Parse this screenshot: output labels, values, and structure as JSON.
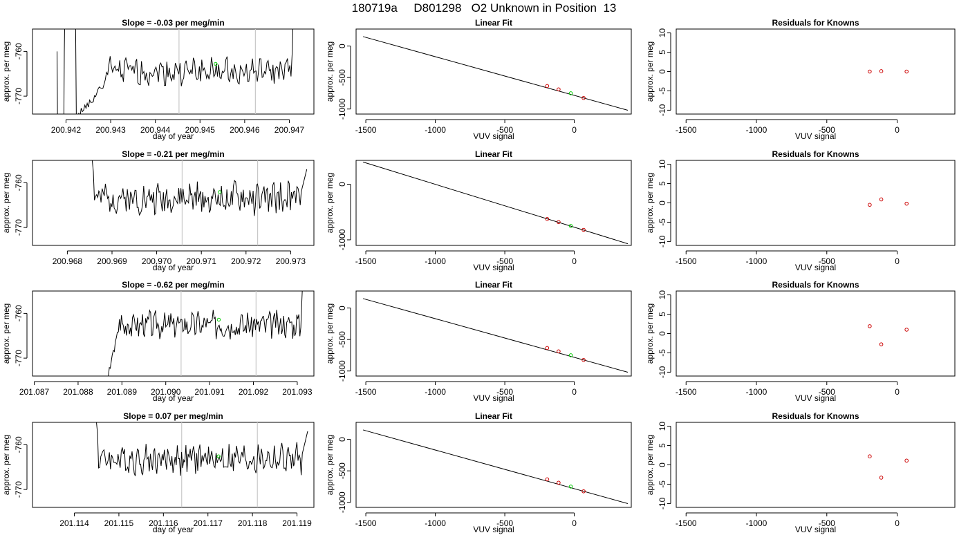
{
  "page": {
    "title": "180719a     D801298   O2 Unknown in Position  13"
  },
  "common": {
    "slope_prefix": "Slope = ",
    "slope_suffix": " per meg/min",
    "fit_title": "Linear Fit",
    "resid_title": "Residuals for Knowns",
    "x_label_time": "day of year",
    "x_label_vuv": "VUV signal",
    "y_label": "approx. per meg"
  },
  "colors": {
    "trace": "#000000",
    "marker_line": "#c8c8c8",
    "unknown_point": "#00cc00",
    "known_point": "#cc0000",
    "axis": "#000000"
  },
  "chart_data": [
    {
      "type": "line",
      "title": "Slope =  -0.03  per meg/min",
      "slope": -0.03,
      "xlabel": "day of year",
      "ylabel": "approx. per meg",
      "xlim": [
        200.94125,
        200.94755
      ],
      "ylim": [
        -774,
        -755
      ],
      "xticks": [
        200.942,
        200.943,
        200.944,
        200.945,
        200.946,
        200.947
      ],
      "xtick_labels": [
        "200.942",
        "200.943",
        "200.944",
        "200.945",
        "200.946",
        "200.947"
      ],
      "yticks": [
        -760,
        -770
      ],
      "ytick_labels": [
        "-760",
        "-770"
      ],
      "markers": [
        200.94453,
        200.94624
      ],
      "trace_start": 200.9418,
      "trace_end": 200.9472,
      "base": -764.5,
      "amp": 2.6,
      "seed": 1,
      "leading": "spike-bowl",
      "green_point": {
        "x": 200.94535,
        "y": -762.8
      }
    },
    {
      "type": "line",
      "title": "Slope =  -0.21  per meg/min",
      "slope": -0.21,
      "xlabel": "day of year",
      "ylabel": "approx. per meg",
      "xlim": [
        200.96722,
        200.97352
      ],
      "ylim": [
        -774,
        -755
      ],
      "xticks": [
        200.968,
        200.969,
        200.97,
        200.971,
        200.972,
        200.973
      ],
      "xtick_labels": [
        "200.968",
        "200.969",
        "200.970",
        "200.971",
        "200.972",
        "200.973"
      ],
      "yticks": [
        -760,
        -770
      ],
      "ytick_labels": [
        "-760",
        "-770"
      ],
      "markers": [
        200.97057,
        200.97226
      ],
      "trace_start": 200.96846,
      "trace_end": 200.97336,
      "base": -763.5,
      "amp": 3.0,
      "seed": 2,
      "leading": "drop",
      "green_point": {
        "x": 200.97141,
        "y": -762.1
      }
    },
    {
      "type": "line",
      "title": "Slope =  -0.62  per meg/min",
      "slope": -0.62,
      "xlabel": "day of year",
      "ylabel": "approx. per meg",
      "xlim": [
        201.08696,
        201.09338
      ],
      "ylim": [
        -774,
        -755
      ],
      "xticks": [
        201.087,
        201.088,
        201.089,
        201.09,
        201.091,
        201.092,
        201.093
      ],
      "xtick_labels": [
        "201.087",
        "201.088",
        "201.089",
        "201.090",
        "201.091",
        "201.092",
        "201.093"
      ],
      "yticks": [
        -760,
        -770
      ],
      "ytick_labels": [
        "-760",
        "-770"
      ],
      "markers": [
        201.09035,
        201.09206
      ],
      "trace_start": 201.08862,
      "trace_end": 201.09322,
      "base": -762.5,
      "amp": 2.6,
      "seed": 3,
      "leading": "rise",
      "green_point": {
        "x": 201.09121,
        "y": -761.4
      }
    },
    {
      "type": "line",
      "title": "Slope =  0.07  per meg/min",
      "slope": 0.07,
      "xlabel": "day of year",
      "ylabel": "approx. per meg",
      "xlim": [
        201.11306,
        201.11938
      ],
      "ylim": [
        -774,
        -755
      ],
      "xticks": [
        201.114,
        201.115,
        201.116,
        201.117,
        201.118,
        201.119
      ],
      "xtick_labels": [
        "201.114",
        "201.115",
        "201.116",
        "201.117",
        "201.118",
        "201.119"
      ],
      "yticks": [
        -760,
        -770
      ],
      "ytick_labels": [
        "-760",
        "-770"
      ],
      "markers": [
        201.11641,
        201.11811
      ],
      "trace_start": 201.1144,
      "trace_end": 201.11924,
      "base": -763.2,
      "amp": 2.9,
      "seed": 4,
      "leading": "drop",
      "green_point": {
        "x": 201.11724,
        "y": -762.6
      }
    },
    {
      "type": "scatter",
      "title": "Linear Fit",
      "xlabel": "VUV signal",
      "ylabel": "approx. per meg",
      "xlim": [
        -1570,
        410
      ],
      "ylim": [
        -1080,
        270
      ],
      "xticks": [
        -1500,
        -1000,
        -500,
        0
      ],
      "xtick_labels": [
        "-1500",
        "-1000",
        "-500",
        "0"
      ],
      "yticks": [
        0,
        -500,
        -1000
      ],
      "ytick_labels": [
        "0",
        "-500",
        "-1000"
      ],
      "fit_line": {
        "x": [
          -1520,
          385
        ],
        "y": [
          150,
          -1020
        ]
      },
      "knowns": [
        {
          "x": -195,
          "y": -635
        },
        {
          "x": -113,
          "y": -688
        },
        {
          "x": 67,
          "y": -825
        }
      ],
      "unknown": {
        "x": -25,
        "y": -750
      }
    },
    {
      "type": "scatter",
      "title": "Linear Fit",
      "xlabel": "VUV signal",
      "ylabel": "approx. per meg",
      "xlim": [
        -1570,
        410
      ],
      "ylim": [
        -1100,
        430
      ],
      "xticks": [
        -1500,
        -1000,
        -500,
        0
      ],
      "xtick_labels": [
        "-1500",
        "-1000",
        "-500",
        "0"
      ],
      "yticks": [
        0,
        -1000
      ],
      "ytick_labels": [
        "0",
        "-1000"
      ],
      "fit_line": {
        "x": [
          -1520,
          385
        ],
        "y": [
          400,
          -1070
        ]
      },
      "knowns": [
        {
          "x": -195,
          "y": -625
        },
        {
          "x": -113,
          "y": -680
        },
        {
          "x": 67,
          "y": -820
        }
      ],
      "unknown": {
        "x": -25,
        "y": -750
      }
    },
    {
      "type": "scatter",
      "title": "Linear Fit",
      "xlabel": "VUV signal",
      "ylabel": "approx. per meg",
      "xlim": [
        -1570,
        410
      ],
      "ylim": [
        -1080,
        270
      ],
      "xticks": [
        -1500,
        -1000,
        -500,
        0
      ],
      "xtick_labels": [
        "-1500",
        "-1000",
        "-500",
        "0"
      ],
      "yticks": [
        0,
        -500,
        -1000
      ],
      "ytick_labels": [
        "0",
        "-500",
        "-1000"
      ],
      "fit_line": {
        "x": [
          -1520,
          385
        ],
        "y": [
          150,
          -1020
        ]
      },
      "knowns": [
        {
          "x": -195,
          "y": -635
        },
        {
          "x": -113,
          "y": -688
        },
        {
          "x": 67,
          "y": -825
        }
      ],
      "unknown": {
        "x": -25,
        "y": -750
      }
    },
    {
      "type": "scatter",
      "title": "Linear Fit",
      "xlabel": "VUV signal",
      "ylabel": "approx. per meg",
      "xlim": [
        -1570,
        410
      ],
      "ylim": [
        -1080,
        270
      ],
      "xticks": [
        -1500,
        -1000,
        -500,
        0
      ],
      "xtick_labels": [
        "-1500",
        "-1000",
        "-500",
        "0"
      ],
      "yticks": [
        0,
        -500,
        -1000
      ],
      "ytick_labels": [
        "0",
        "-500",
        "-1000"
      ],
      "fit_line": {
        "x": [
          -1520,
          385
        ],
        "y": [
          150,
          -1020
        ]
      },
      "knowns": [
        {
          "x": -195,
          "y": -635
        },
        {
          "x": -113,
          "y": -688
        },
        {
          "x": 67,
          "y": -825
        }
      ],
      "unknown": {
        "x": -25,
        "y": -750
      }
    },
    {
      "type": "scatter",
      "title": "Residuals for Knowns",
      "xlabel": "VUV signal",
      "ylabel": "approx. per meg",
      "xlim": [
        -1570,
        410
      ],
      "ylim": [
        -11,
        11
      ],
      "xticks": [
        -1500,
        -1000,
        -500,
        0
      ],
      "xtick_labels": [
        "-1500",
        "-1000",
        "-500",
        "0"
      ],
      "yticks": [
        10,
        5,
        0,
        -5,
        -10
      ],
      "ytick_labels": [
        "10",
        "5",
        "0",
        "-5",
        "-10"
      ],
      "residuals": [
        {
          "x": -195,
          "y": 0.0
        },
        {
          "x": -113,
          "y": 0.1
        },
        {
          "x": 67,
          "y": 0.0
        }
      ]
    },
    {
      "type": "scatter",
      "title": "Residuals for Knowns",
      "xlabel": "VUV signal",
      "ylabel": "approx. per meg",
      "xlim": [
        -1570,
        410
      ],
      "ylim": [
        -11,
        11
      ],
      "xticks": [
        -1500,
        -1000,
        -500,
        0
      ],
      "xtick_labels": [
        "-1500",
        "-1000",
        "-500",
        "0"
      ],
      "yticks": [
        10,
        5,
        0,
        -5,
        -10
      ],
      "ytick_labels": [
        "10",
        "5",
        "0",
        "-5",
        "-10"
      ],
      "residuals": [
        {
          "x": -195,
          "y": -0.5
        },
        {
          "x": -113,
          "y": 0.9
        },
        {
          "x": 67,
          "y": -0.2
        }
      ]
    },
    {
      "type": "scatter",
      "title": "Residuals for Knowns",
      "xlabel": "VUV signal",
      "ylabel": "approx. per meg",
      "xlim": [
        -1570,
        410
      ],
      "ylim": [
        -11,
        11
      ],
      "xticks": [
        -1500,
        -1000,
        -500,
        0
      ],
      "xtick_labels": [
        "-1500",
        "-1000",
        "-500",
        "0"
      ],
      "yticks": [
        10,
        5,
        0,
        -5,
        -10
      ],
      "ytick_labels": [
        "10",
        "5",
        "0",
        "-5",
        "-10"
      ],
      "residuals": [
        {
          "x": -195,
          "y": 1.9
        },
        {
          "x": -113,
          "y": -2.8
        },
        {
          "x": 67,
          "y": 1.0
        }
      ]
    },
    {
      "type": "scatter",
      "title": "Residuals for Knowns",
      "xlabel": "VUV signal",
      "ylabel": "approx. per meg",
      "xlim": [
        -1570,
        410
      ],
      "ylim": [
        -11,
        11
      ],
      "xticks": [
        -1500,
        -1000,
        -500,
        0
      ],
      "xtick_labels": [
        "-1500",
        "-1000",
        "-500",
        "0"
      ],
      "yticks": [
        10,
        5,
        0,
        -5,
        -10
      ],
      "ytick_labels": [
        "10",
        "5",
        "0",
        "-5",
        "-10"
      ],
      "residuals": [
        {
          "x": -195,
          "y": 2.2
        },
        {
          "x": -113,
          "y": -3.3
        },
        {
          "x": 67,
          "y": 1.1
        }
      ]
    }
  ]
}
